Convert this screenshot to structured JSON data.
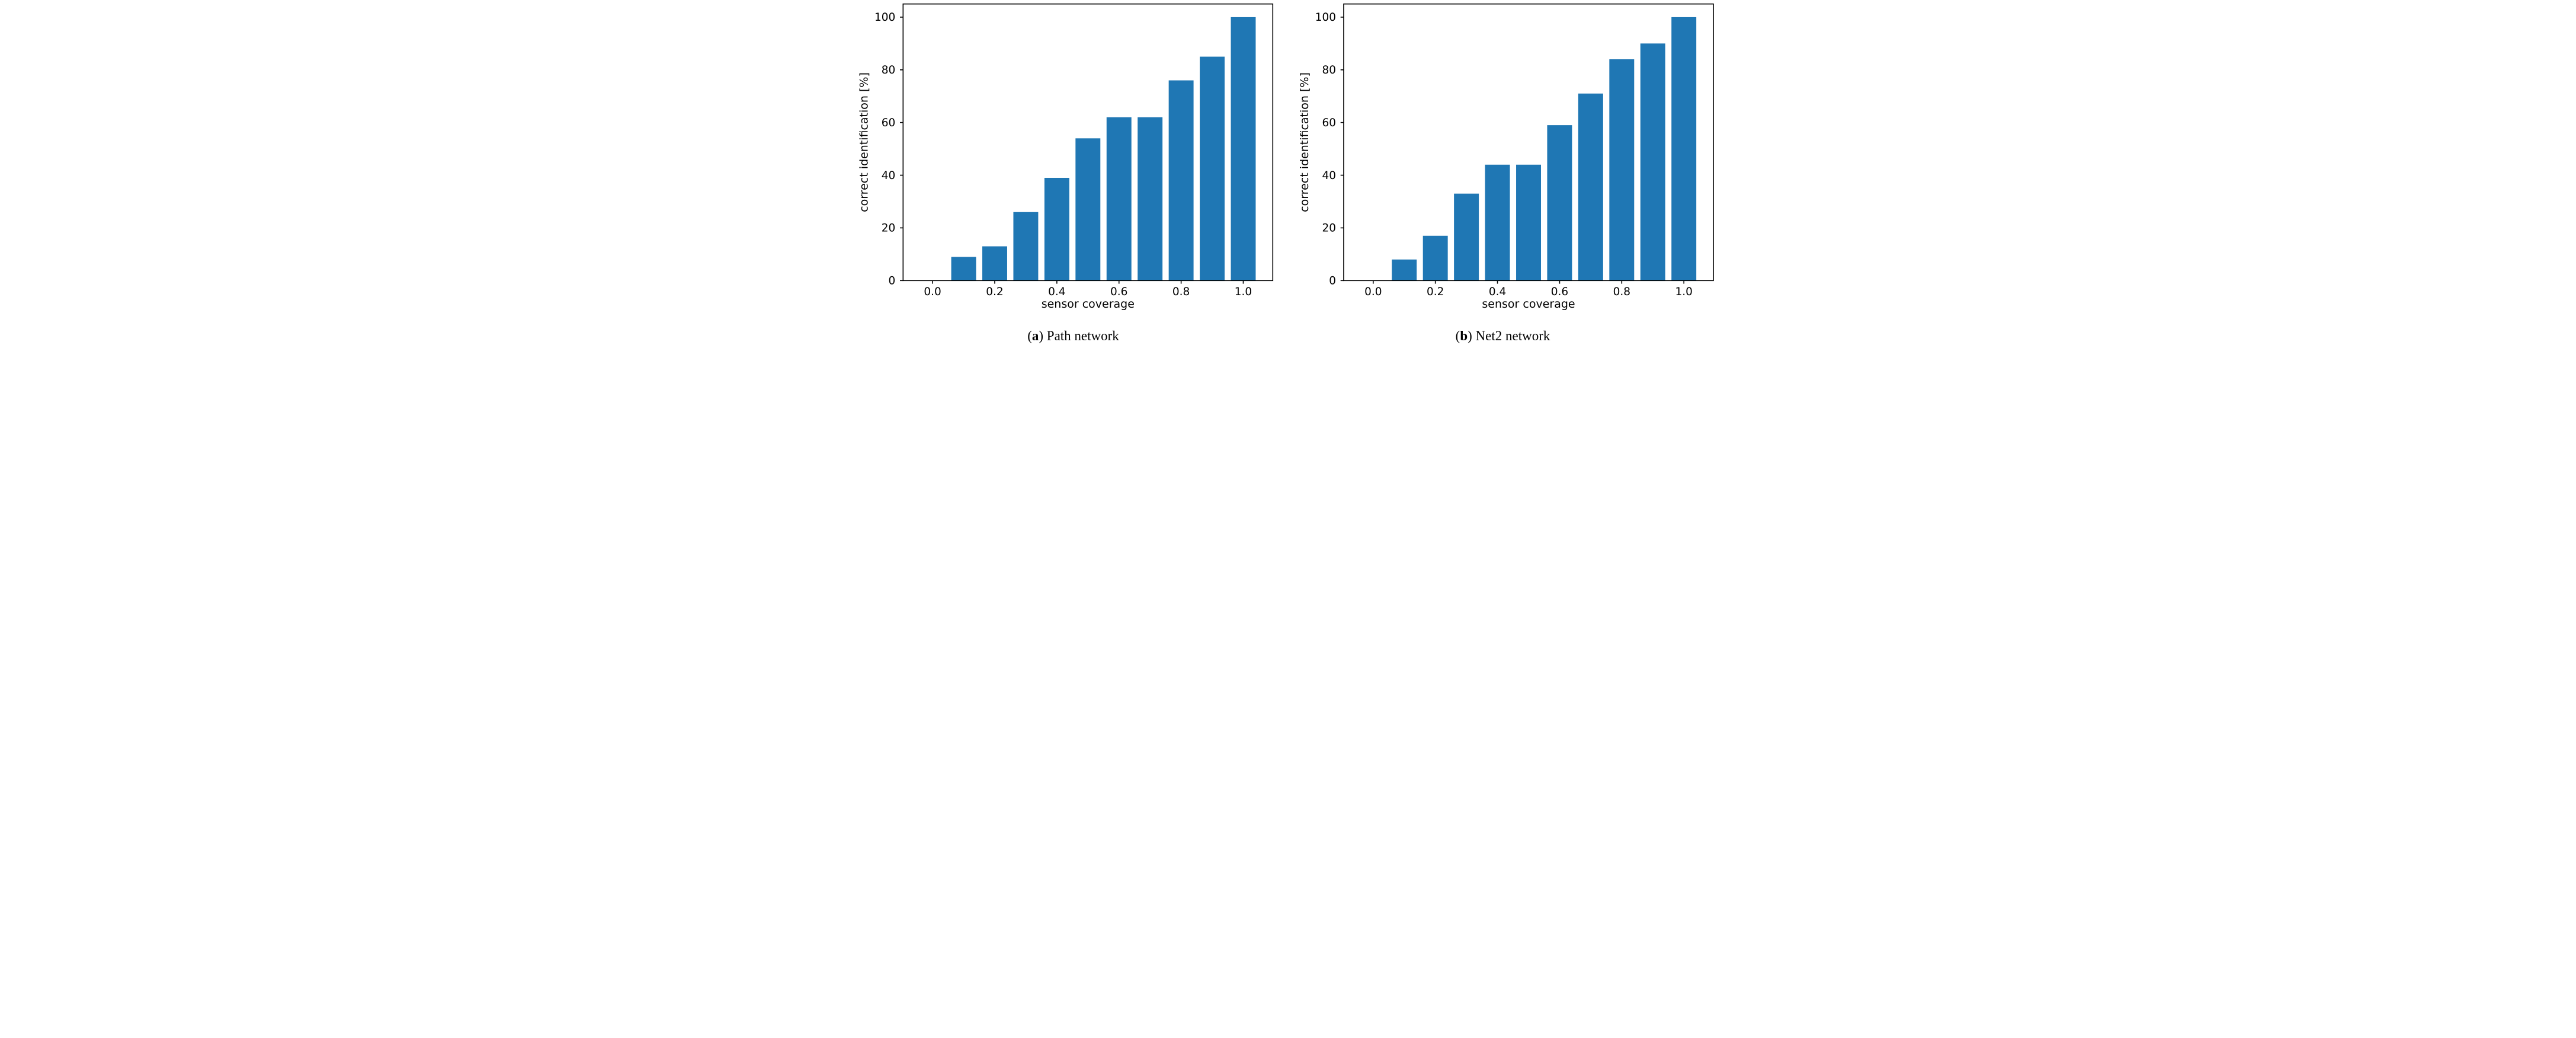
{
  "figure": {
    "background": "#ffffff",
    "axis_color": "#000000",
    "bar_color": "#1f77b4"
  },
  "chart_data": [
    {
      "type": "bar",
      "caption": {
        "open": "(",
        "letter": "a",
        "close": ")",
        "text": "Path network"
      },
      "xlabel": "sensor coverage",
      "ylabel": "correct identification [%]",
      "x": [
        0.0,
        0.1,
        0.2,
        0.3,
        0.4,
        0.5,
        0.6,
        0.7,
        0.8,
        0.9,
        1.0
      ],
      "values": [
        0,
        9,
        13,
        26,
        39,
        54,
        62,
        62,
        76,
        85,
        100
      ],
      "bar_width": 0.08,
      "bar_color": "#1f77b4",
      "xlim": [
        -0.095,
        1.095
      ],
      "ylim": [
        0,
        105
      ],
      "xticks": [
        0.0,
        0.2,
        0.4,
        0.6,
        0.8,
        1.0
      ],
      "xtick_labels": [
        "0.0",
        "0.2",
        "0.4",
        "0.6",
        "0.8",
        "1.0"
      ],
      "yticks": [
        0,
        20,
        40,
        60,
        80,
        100
      ],
      "ytick_labels": [
        "0",
        "20",
        "40",
        "60",
        "80",
        "100"
      ],
      "grid": false,
      "legend_position": "none"
    },
    {
      "type": "bar",
      "caption": {
        "open": "(",
        "letter": "b",
        "close": ")",
        "text": "Net2 network"
      },
      "xlabel": "sensor coverage",
      "ylabel": "correct identification [%]",
      "x": [
        0.0,
        0.1,
        0.2,
        0.3,
        0.4,
        0.5,
        0.6,
        0.7,
        0.8,
        0.9,
        1.0
      ],
      "values": [
        0,
        8,
        17,
        33,
        44,
        44,
        59,
        71,
        84,
        90,
        100
      ],
      "bar_width": 0.08,
      "bar_color": "#1f77b4",
      "xlim": [
        -0.095,
        1.095
      ],
      "ylim": [
        0,
        105
      ],
      "xticks": [
        0.0,
        0.2,
        0.4,
        0.6,
        0.8,
        1.0
      ],
      "xtick_labels": [
        "0.0",
        "0.2",
        "0.4",
        "0.6",
        "0.8",
        "1.0"
      ],
      "yticks": [
        0,
        20,
        40,
        60,
        80,
        100
      ],
      "ytick_labels": [
        "0",
        "20",
        "40",
        "60",
        "80",
        "100"
      ],
      "grid": false,
      "legend_position": "none"
    }
  ]
}
